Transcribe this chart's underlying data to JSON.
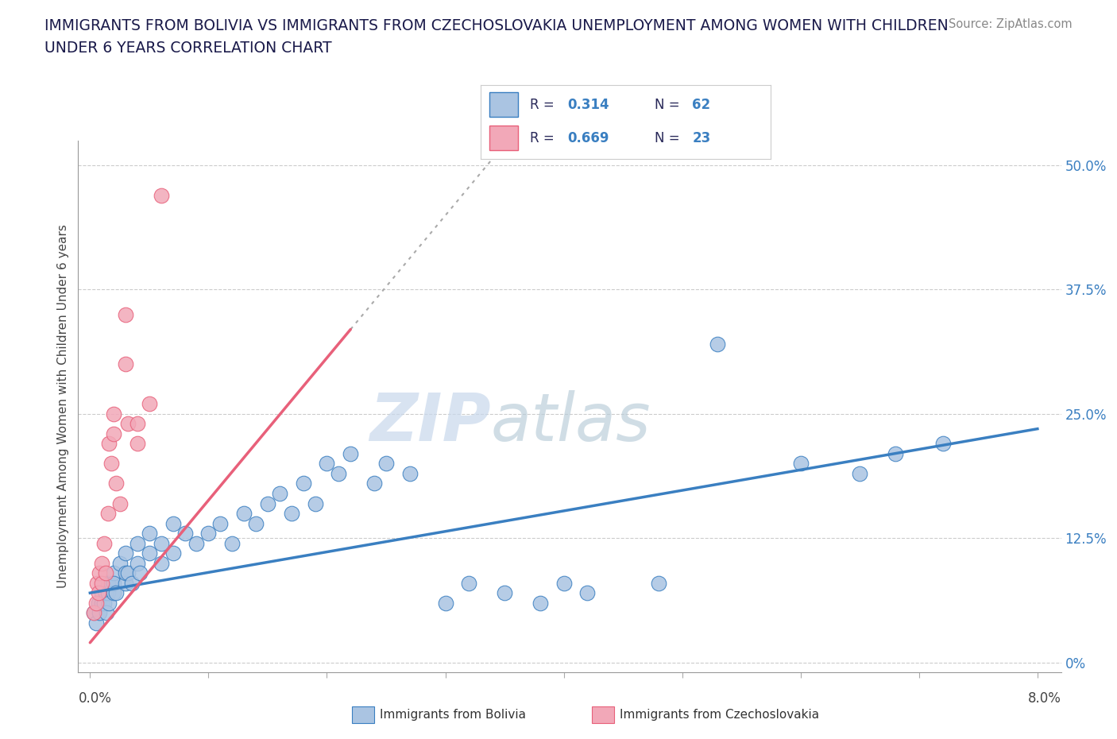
{
  "title_line1": "IMMIGRANTS FROM BOLIVIA VS IMMIGRANTS FROM CZECHOSLOVAKIA UNEMPLOYMENT AMONG WOMEN WITH CHILDREN",
  "title_line2": "UNDER 6 YEARS CORRELATION CHART",
  "source_text": "Source: ZipAtlas.com",
  "ytick_vals": [
    0.0,
    0.125,
    0.25,
    0.375,
    0.5
  ],
  "ytick_labels": [
    "0%",
    "12.5%",
    "25.0%",
    "37.5%",
    "50.0%"
  ],
  "xtick_vals": [
    0.0,
    0.01,
    0.02,
    0.03,
    0.04,
    0.05,
    0.06,
    0.07,
    0.08
  ],
  "xlim": [
    -0.001,
    0.082
  ],
  "ylim": [
    -0.01,
    0.525
  ],
  "legend_r1_label": "R = ",
  "legend_r1_val": "0.314",
  "legend_n1_label": "N = ",
  "legend_n1_val": "62",
  "legend_r2_label": "R = ",
  "legend_r2_val": "0.669",
  "legend_n2_label": "N = ",
  "legend_n2_val": "23",
  "legend_label1": "Immigrants from Bolivia",
  "legend_label2": "Immigrants from Czechoslovakia",
  "color_bolivia": "#aac4e2",
  "color_czech": "#f2a8b8",
  "color_bolivia_line": "#3a7fc1",
  "color_czech_line": "#e8607a",
  "watermark_zip_color": "#c8d8ec",
  "watermark_atlas_color": "#b8ccd8",
  "bolivia_scatter_x": [
    0.0003,
    0.0005,
    0.0007,
    0.0008,
    0.001,
    0.001,
    0.0012,
    0.0013,
    0.0014,
    0.0015,
    0.0015,
    0.0016,
    0.0018,
    0.002,
    0.002,
    0.002,
    0.0022,
    0.0025,
    0.003,
    0.003,
    0.003,
    0.0032,
    0.0035,
    0.004,
    0.004,
    0.0042,
    0.005,
    0.005,
    0.006,
    0.006,
    0.007,
    0.007,
    0.008,
    0.009,
    0.01,
    0.011,
    0.012,
    0.013,
    0.014,
    0.015,
    0.016,
    0.017,
    0.018,
    0.019,
    0.02,
    0.021,
    0.022,
    0.024,
    0.025,
    0.027,
    0.03,
    0.032,
    0.035,
    0.038,
    0.04,
    0.042,
    0.048,
    0.053,
    0.06,
    0.065,
    0.068,
    0.072
  ],
  "bolivia_scatter_y": [
    0.05,
    0.04,
    0.06,
    0.05,
    0.07,
    0.06,
    0.06,
    0.07,
    0.05,
    0.07,
    0.08,
    0.06,
    0.08,
    0.07,
    0.09,
    0.08,
    0.07,
    0.1,
    0.08,
    0.09,
    0.11,
    0.09,
    0.08,
    0.1,
    0.12,
    0.09,
    0.11,
    0.13,
    0.1,
    0.12,
    0.11,
    0.14,
    0.13,
    0.12,
    0.13,
    0.14,
    0.12,
    0.15,
    0.14,
    0.16,
    0.17,
    0.15,
    0.18,
    0.16,
    0.2,
    0.19,
    0.21,
    0.18,
    0.2,
    0.19,
    0.06,
    0.08,
    0.07,
    0.06,
    0.08,
    0.07,
    0.08,
    0.32,
    0.2,
    0.19,
    0.21,
    0.22
  ],
  "czech_scatter_x": [
    0.0003,
    0.0005,
    0.0006,
    0.0007,
    0.0008,
    0.001,
    0.001,
    0.0012,
    0.0013,
    0.0015,
    0.0016,
    0.0018,
    0.002,
    0.002,
    0.0022,
    0.0025,
    0.003,
    0.003,
    0.0032,
    0.004,
    0.004,
    0.005,
    0.006
  ],
  "czech_scatter_y": [
    0.05,
    0.06,
    0.08,
    0.07,
    0.09,
    0.08,
    0.1,
    0.12,
    0.09,
    0.15,
    0.22,
    0.2,
    0.23,
    0.25,
    0.18,
    0.16,
    0.35,
    0.3,
    0.24,
    0.22,
    0.24,
    0.26,
    0.47
  ]
}
